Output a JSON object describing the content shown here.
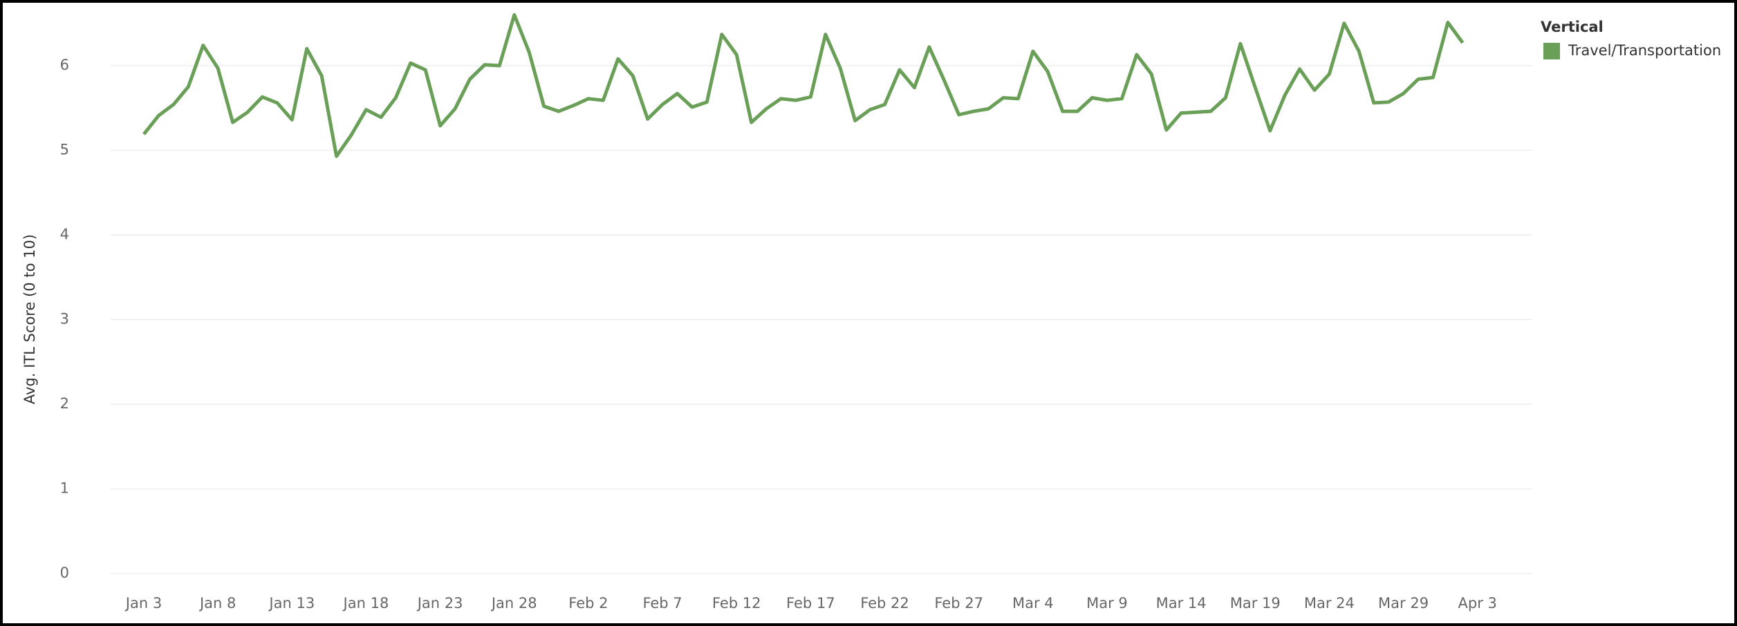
{
  "chart_data": {
    "type": "line",
    "y_label": "Avg. ITL Score (0 to 10)",
    "legend_title": "Vertical",
    "legend_position": "top-right",
    "grid": true,
    "categories": [
      "Jan 3",
      null,
      null,
      null,
      null,
      "Jan 8",
      null,
      null,
      null,
      null,
      "Jan 13",
      null,
      null,
      null,
      null,
      "Jan 18",
      null,
      null,
      null,
      null,
      "Jan 23",
      null,
      null,
      null,
      null,
      "Jan 28",
      null,
      null,
      null,
      null,
      "Feb 2",
      null,
      null,
      null,
      null,
      "Feb 7",
      null,
      null,
      null,
      null,
      "Feb 12",
      null,
      null,
      null,
      null,
      "Feb 17",
      null,
      null,
      null,
      null,
      "Feb 22",
      null,
      null,
      null,
      null,
      "Feb 27",
      null,
      null,
      null,
      null,
      "Mar 4",
      null,
      null,
      null,
      null,
      "Mar 9",
      null,
      null,
      null,
      null,
      "Mar 14",
      null,
      null,
      null,
      null,
      "Mar 19",
      null,
      null,
      null,
      null,
      "Mar 24",
      null,
      null,
      null,
      null,
      "Mar 29",
      null,
      null,
      null,
      null,
      "Apr 3"
    ],
    "series": [
      {
        "name": "Travel/Transportation",
        "color": "#6a9f58",
        "values": [
          5.19,
          5.41,
          5.54,
          5.75,
          6.24,
          5.97,
          5.33,
          5.45,
          5.63,
          5.56,
          5.36,
          6.2,
          5.88,
          4.93,
          5.18,
          5.48,
          5.39,
          5.62,
          6.03,
          5.95,
          5.29,
          5.49,
          5.84,
          6.01,
          6.0,
          6.6,
          6.16,
          5.52,
          5.46,
          5.53,
          5.61,
          5.59,
          6.08,
          5.88,
          5.37,
          5.54,
          5.67,
          5.51,
          5.57,
          6.37,
          6.13,
          5.33,
          5.49,
          5.61,
          5.59,
          5.63,
          6.37,
          5.97,
          5.35,
          5.48,
          5.54,
          5.95,
          5.74,
          6.22,
          5.83,
          5.42,
          5.46,
          5.49,
          5.62,
          5.61,
          6.17,
          5.93,
          5.46,
          5.46,
          5.62,
          5.59,
          5.61,
          6.13,
          5.9,
          5.24,
          5.44,
          5.45,
          5.46,
          5.62,
          6.26,
          5.74,
          5.23,
          5.65,
          5.96,
          5.71,
          5.9,
          6.5,
          6.17,
          5.56,
          5.57,
          5.67,
          5.84,
          5.86,
          6.51,
          6.27,
          null
        ]
      }
    ],
    "ylim": [
      -0.13,
      6.71
    ],
    "yticks": [
      0,
      1,
      2,
      3,
      4,
      5,
      6
    ]
  }
}
